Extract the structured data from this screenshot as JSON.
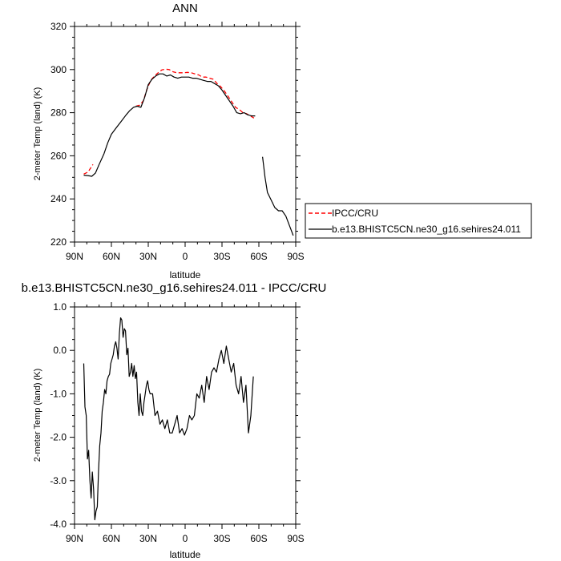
{
  "chart_data": [
    {
      "type": "line",
      "title": "ANN",
      "xlabel": "latitude",
      "ylabel": "2-meter Temp (land) (K)",
      "xlim": [
        90,
        -90
      ],
      "ylim": [
        220,
        320
      ],
      "x_tick_values": [
        90,
        60,
        30,
        0,
        -30,
        -60,
        -90
      ],
      "x_tick_labels": [
        "90N",
        "60N",
        "30N",
        "0",
        "30S",
        "60S",
        "90S"
      ],
      "y_tick_values": [
        220,
        240,
        260,
        280,
        300,
        320
      ],
      "y_tick_labels": [
        "220",
        "240",
        "260",
        "280",
        "300",
        "320"
      ],
      "legend": {
        "placement": "right-outside"
      },
      "series": [
        {
          "name": "IPCC/CRU",
          "color": "#ff0000",
          "dash": "dashed",
          "x": [
            82.5,
            79,
            75,
            70,
            65,
            60,
            55,
            50,
            45,
            40,
            37,
            34,
            31,
            28,
            25,
            22,
            19,
            16,
            13,
            10,
            7,
            4,
            1,
            -2,
            -5,
            -8,
            -11,
            -14,
            -17,
            -20,
            -23,
            -26,
            -29,
            -32,
            -35,
            -38,
            -41,
            -44,
            -47,
            -50,
            -53,
            -56
          ],
          "y": [
            251.5,
            252.5,
            256,
            261,
            266,
            271,
            274,
            277,
            280.5,
            283,
            283.5,
            285.5,
            291,
            295,
            297,
            298.5,
            299.8,
            300.2,
            300,
            299,
            298.5,
            298.5,
            298.5,
            298.7,
            298.5,
            298,
            297.5,
            296.5,
            296.5,
            296,
            295.5,
            293.5,
            292,
            290,
            287.5,
            285,
            282.5,
            281.5,
            280,
            279.5,
            278.5,
            277.5
          ]
        },
        {
          "name": "b.e13.BHISTC5CN.ne30_g16.sehires24.011",
          "color": "#000000",
          "dash": "solid",
          "x": [
            82.5,
            79,
            76,
            73,
            70,
            66,
            63,
            60,
            56,
            52,
            48,
            45,
            42,
            39,
            36,
            33,
            30,
            27,
            24,
            21,
            18,
            15,
            12,
            9,
            6,
            3,
            0,
            -3,
            -6,
            -9,
            -12,
            -15,
            -18,
            -21,
            -24,
            -27,
            -30,
            -33,
            -36,
            -39,
            -42,
            -45,
            -48,
            -51,
            -54,
            -57,
            -63,
            -64,
            -65,
            -67,
            -70,
            -73,
            -76,
            -79,
            -82,
            -85,
            -88
          ],
          "y": [
            251,
            250.8,
            250.5,
            252,
            256,
            261,
            266,
            270,
            273,
            276,
            279,
            281,
            282.5,
            283,
            282.5,
            287,
            293,
            295.5,
            297,
            298,
            298,
            297,
            297.5,
            296.5,
            296,
            296.5,
            296.5,
            296.5,
            296,
            296,
            295.5,
            295,
            294.5,
            294.5,
            293.5,
            292.5,
            290.5,
            288,
            285.5,
            283,
            280,
            279.5,
            280,
            279,
            278.5,
            278.5,
            259.5,
            255,
            250,
            243,
            239.5,
            236,
            234.5,
            234.5,
            232,
            227.5,
            223
          ]
        }
      ]
    },
    {
      "type": "line",
      "title": "b.e13.BHISTC5CN.ne30_g16.sehires24.011 - IPCC/CRU",
      "xlabel": "latitude",
      "ylabel": "2-meter Temp (land) (K)",
      "xlim": [
        90,
        -90
      ],
      "ylim": [
        -4.0,
        1.0
      ],
      "x_tick_values": [
        90,
        60,
        30,
        0,
        -30,
        -60,
        -90
      ],
      "x_tick_labels": [
        "90N",
        "60N",
        "30N",
        "0",
        "30S",
        "60S",
        "90S"
      ],
      "y_tick_values": [
        -4,
        -3,
        -2,
        -1,
        0,
        1
      ],
      "y_tick_labels": [
        "-4.0",
        "-3.0",
        "-2.0",
        "-1.0",
        "0.0",
        "1.0"
      ],
      "series": [
        {
          "name": "",
          "color": "#000000",
          "dash": "solid",
          "x": [
            82.5,
            81.5,
            80.5,
            79.5,
            78.5,
            77.5,
            76.5,
            75.5,
            74.5,
            73.5,
            72.5,
            71.5,
            70.5,
            69.5,
            68.5,
            67.5,
            66.5,
            65.5,
            64.5,
            63.5,
            62.5,
            61.5,
            60.5,
            59.5,
            58.5,
            57.5,
            56.5,
            55.5,
            54.5,
            53.5,
            52.5,
            51.5,
            50.5,
            49.5,
            48.5,
            47.5,
            46.5,
            45.5,
            44.5,
            43.5,
            42.5,
            41.5,
            40.5,
            39.5,
            38.5,
            37.5,
            36.5,
            35.5,
            34.5,
            33.5,
            32.5,
            31.5,
            30.5,
            29.5,
            28.5,
            26.5,
            24.5,
            22.5,
            20.5,
            18.5,
            16.5,
            14.5,
            12.5,
            10.5,
            8.5,
            6.5,
            4.5,
            2.5,
            0.5,
            -1.5,
            -3.5,
            -5.5,
            -7.5,
            -9.5,
            -11.5,
            -13.5,
            -15.5,
            -17.5,
            -19.5,
            -21.5,
            -23.5,
            -25.5,
            -27.5,
            -29.5,
            -31.5,
            -33.5,
            -35.5,
            -37.5,
            -39.5,
            -41.5,
            -43.5,
            -45.5,
            -47.5,
            -49.5,
            -51.5,
            -53.5,
            -55.5
          ],
          "y": [
            -0.3,
            -1.3,
            -1.5,
            -2.5,
            -2.3,
            -3.0,
            -3.4,
            -2.8,
            -3.2,
            -3.9,
            -3.7,
            -3.6,
            -2.8,
            -2.2,
            -1.9,
            -1.4,
            -1.2,
            -0.9,
            -1.0,
            -0.7,
            -0.6,
            -0.55,
            -0.3,
            -0.2,
            -0.1,
            0.1,
            0.2,
            0.05,
            -0.2,
            0.4,
            0.75,
            0.7,
            0.3,
            0.5,
            0.45,
            -0.1,
            0.05,
            -0.6,
            -0.5,
            -0.3,
            -0.6,
            -0.35,
            -0.65,
            -0.5,
            -1.2,
            -1.5,
            -1.0,
            -1.4,
            -1.5,
            -1.2,
            -1.0,
            -0.8,
            -0.7,
            -0.9,
            -1.0,
            -1.0,
            -1.5,
            -1.4,
            -1.7,
            -1.6,
            -1.8,
            -1.6,
            -1.9,
            -1.9,
            -1.7,
            -1.5,
            -1.9,
            -1.8,
            -1.95,
            -1.8,
            -1.5,
            -1.6,
            -1.5,
            -1.0,
            -1.1,
            -0.8,
            -1.2,
            -0.6,
            -0.9,
            -0.5,
            -0.4,
            -0.5,
            -0.2,
            0.0,
            -0.3,
            0.1,
            -0.2,
            -0.5,
            -0.3,
            -0.8,
            -1.0,
            -0.6,
            -1.2,
            -0.8,
            -1.9,
            -1.5,
            -0.6
          ]
        }
      ]
    }
  ]
}
